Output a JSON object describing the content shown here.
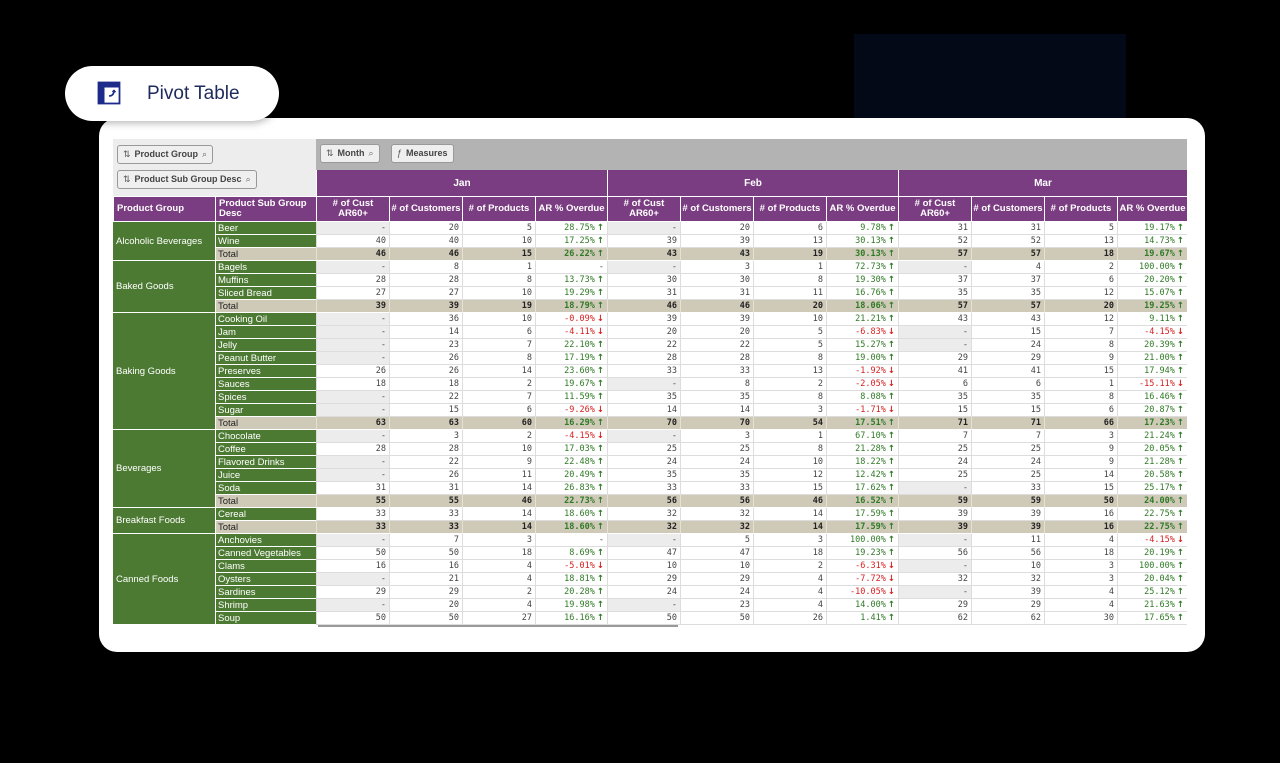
{
  "pill": {
    "label": "Pivot Table",
    "icon": "pivot-table-icon"
  },
  "filters": {
    "product_group": "Product Group",
    "product_sub_group": "Product Sub Group Desc",
    "month": "Month",
    "measures": "Measures"
  },
  "headers": {
    "product_group": "Product Group",
    "product_sub_group": "Product Sub Group Desc",
    "months": [
      "Jan",
      "Feb",
      "Mar"
    ],
    "measures": [
      "# of Cust AR60+",
      "# of Customers",
      "# of Products",
      "AR % Overdue"
    ]
  },
  "colors": {
    "header": "#7b3d82",
    "dimension": "#4d7a33",
    "total": "#cfc9b8",
    "positive": "#2f7a25",
    "negative": "#d62020"
  },
  "groups": [
    {
      "name": "Alcoholic Beverages",
      "rows": [
        {
          "sub": "Beer",
          "v": [
            "-",
            "20",
            "5",
            "28.75%",
            "-",
            "20",
            "6",
            "9.78%",
            "31",
            "31",
            "5",
            "19.17%"
          ]
        },
        {
          "sub": "Wine",
          "v": [
            "40",
            "40",
            "10",
            "17.25%",
            "39",
            "39",
            "13",
            "30.13%",
            "52",
            "52",
            "13",
            "14.73%"
          ]
        },
        {
          "sub": "Total",
          "total": true,
          "v": [
            "46",
            "46",
            "15",
            "26.22%",
            "43",
            "43",
            "19",
            "30.13%",
            "57",
            "57",
            "18",
            "19.67%"
          ]
        }
      ]
    },
    {
      "name": "Baked Goods",
      "rows": [
        {
          "sub": "Bagels",
          "v": [
            "-",
            "8",
            "1",
            "-",
            "-",
            "3",
            "1",
            "72.73%",
            "-",
            "4",
            "2",
            "100.00%"
          ]
        },
        {
          "sub": "Muffins",
          "v": [
            "28",
            "28",
            "8",
            "13.73%",
            "30",
            "30",
            "8",
            "19.30%",
            "37",
            "37",
            "6",
            "20.20%"
          ]
        },
        {
          "sub": "Sliced Bread",
          "v": [
            "27",
            "27",
            "10",
            "19.29%",
            "31",
            "31",
            "11",
            "16.76%",
            "35",
            "35",
            "12",
            "15.07%"
          ]
        },
        {
          "sub": "Total",
          "total": true,
          "v": [
            "39",
            "39",
            "19",
            "18.79%",
            "46",
            "46",
            "20",
            "18.06%",
            "57",
            "57",
            "20",
            "19.25%"
          ]
        }
      ]
    },
    {
      "name": "Baking Goods",
      "rows": [
        {
          "sub": "Cooking Oil",
          "v": [
            "-",
            "36",
            "10",
            "-0.09%",
            "39",
            "39",
            "10",
            "21.21%",
            "43",
            "43",
            "12",
            "9.11%"
          ]
        },
        {
          "sub": "Jam",
          "v": [
            "-",
            "14",
            "6",
            "-4.11%",
            "20",
            "20",
            "5",
            "-6.83%",
            "-",
            "15",
            "7",
            "-4.15%"
          ]
        },
        {
          "sub": "Jelly",
          "v": [
            "-",
            "23",
            "7",
            "22.10%",
            "22",
            "22",
            "5",
            "15.27%",
            "-",
            "24",
            "8",
            "20.39%"
          ]
        },
        {
          "sub": "Peanut Butter",
          "v": [
            "-",
            "26",
            "8",
            "17.19%",
            "28",
            "28",
            "8",
            "19.00%",
            "29",
            "29",
            "9",
            "21.00%"
          ]
        },
        {
          "sub": "Preserves",
          "v": [
            "26",
            "26",
            "14",
            "23.60%",
            "33",
            "33",
            "13",
            "-1.92%",
            "41",
            "41",
            "15",
            "17.94%"
          ]
        },
        {
          "sub": "Sauces",
          "v": [
            "18",
            "18",
            "2",
            "19.67%",
            "-",
            "8",
            "2",
            "-2.05%",
            "6",
            "6",
            "1",
            "-15.11%"
          ]
        },
        {
          "sub": "Spices",
          "v": [
            "-",
            "22",
            "7",
            "11.59%",
            "35",
            "35",
            "8",
            "8.08%",
            "35",
            "35",
            "8",
            "16.46%"
          ]
        },
        {
          "sub": "Sugar",
          "v": [
            "-",
            "15",
            "6",
            "-9.26%",
            "14",
            "14",
            "3",
            "-1.71%",
            "15",
            "15",
            "6",
            "20.87%"
          ]
        },
        {
          "sub": "Total",
          "total": true,
          "v": [
            "63",
            "63",
            "60",
            "16.29%",
            "70",
            "70",
            "54",
            "17.51%",
            "71",
            "71",
            "66",
            "17.23%"
          ]
        }
      ]
    },
    {
      "name": "Beverages",
      "rows": [
        {
          "sub": "Chocolate",
          "v": [
            "-",
            "3",
            "2",
            "-4.15%",
            "-",
            "3",
            "1",
            "67.10%",
            "7",
            "7",
            "3",
            "21.24%"
          ]
        },
        {
          "sub": "Coffee",
          "v": [
            "28",
            "28",
            "10",
            "17.03%",
            "25",
            "25",
            "8",
            "21.28%",
            "25",
            "25",
            "9",
            "20.05%"
          ]
        },
        {
          "sub": "Flavored Drinks",
          "v": [
            "-",
            "22",
            "9",
            "22.48%",
            "24",
            "24",
            "10",
            "18.22%",
            "24",
            "24",
            "9",
            "21.28%"
          ]
        },
        {
          "sub": "Juice",
          "v": [
            "-",
            "26",
            "11",
            "20.49%",
            "35",
            "35",
            "12",
            "12.42%",
            "25",
            "25",
            "14",
            "20.58%"
          ]
        },
        {
          "sub": "Soda",
          "v": [
            "31",
            "31",
            "14",
            "26.83%",
            "33",
            "33",
            "15",
            "17.62%",
            "-",
            "33",
            "15",
            "25.17%"
          ]
        },
        {
          "sub": "Total",
          "total": true,
          "v": [
            "55",
            "55",
            "46",
            "22.73%",
            "56",
            "56",
            "46",
            "16.52%",
            "59",
            "59",
            "50",
            "24.00%"
          ]
        }
      ]
    },
    {
      "name": "Breakfast Foods",
      "rows": [
        {
          "sub": "Cereal",
          "v": [
            "33",
            "33",
            "14",
            "18.60%",
            "32",
            "32",
            "14",
            "17.59%",
            "39",
            "39",
            "16",
            "22.75%"
          ]
        },
        {
          "sub": "Total",
          "total": true,
          "v": [
            "33",
            "33",
            "14",
            "18.60%",
            "32",
            "32",
            "14",
            "17.59%",
            "39",
            "39",
            "16",
            "22.75%"
          ]
        }
      ]
    },
    {
      "name": "Canned Foods",
      "rows": [
        {
          "sub": "Anchovies",
          "v": [
            "-",
            "7",
            "3",
            "-",
            "-",
            "5",
            "3",
            "100.00%",
            "-",
            "11",
            "4",
            "-4.15%"
          ]
        },
        {
          "sub": "Canned Vegetables",
          "v": [
            "50",
            "50",
            "18",
            "8.69%",
            "47",
            "47",
            "18",
            "19.23%",
            "56",
            "56",
            "18",
            "20.19%"
          ]
        },
        {
          "sub": "Clams",
          "v": [
            "16",
            "16",
            "4",
            "-5.01%",
            "10",
            "10",
            "2",
            "-6.31%",
            "-",
            "10",
            "3",
            "100.00%"
          ]
        },
        {
          "sub": "Oysters",
          "v": [
            "-",
            "21",
            "4",
            "18.81%",
            "29",
            "29",
            "4",
            "-7.72%",
            "32",
            "32",
            "3",
            "20.04%"
          ]
        },
        {
          "sub": "Sardines",
          "v": [
            "29",
            "29",
            "2",
            "20.28%",
            "24",
            "24",
            "4",
            "-10.05%",
            "-",
            "39",
            "4",
            "25.12%"
          ]
        },
        {
          "sub": "Shrimp",
          "v": [
            "-",
            "20",
            "4",
            "19.98%",
            "-",
            "23",
            "4",
            "14.00%",
            "29",
            "29",
            "4",
            "21.63%"
          ]
        },
        {
          "sub": "Soup",
          "v": [
            "50",
            "50",
            "27",
            "16.16%",
            "50",
            "50",
            "26",
            "1.41%",
            "62",
            "62",
            "30",
            "17.65%"
          ]
        }
      ]
    }
  ]
}
